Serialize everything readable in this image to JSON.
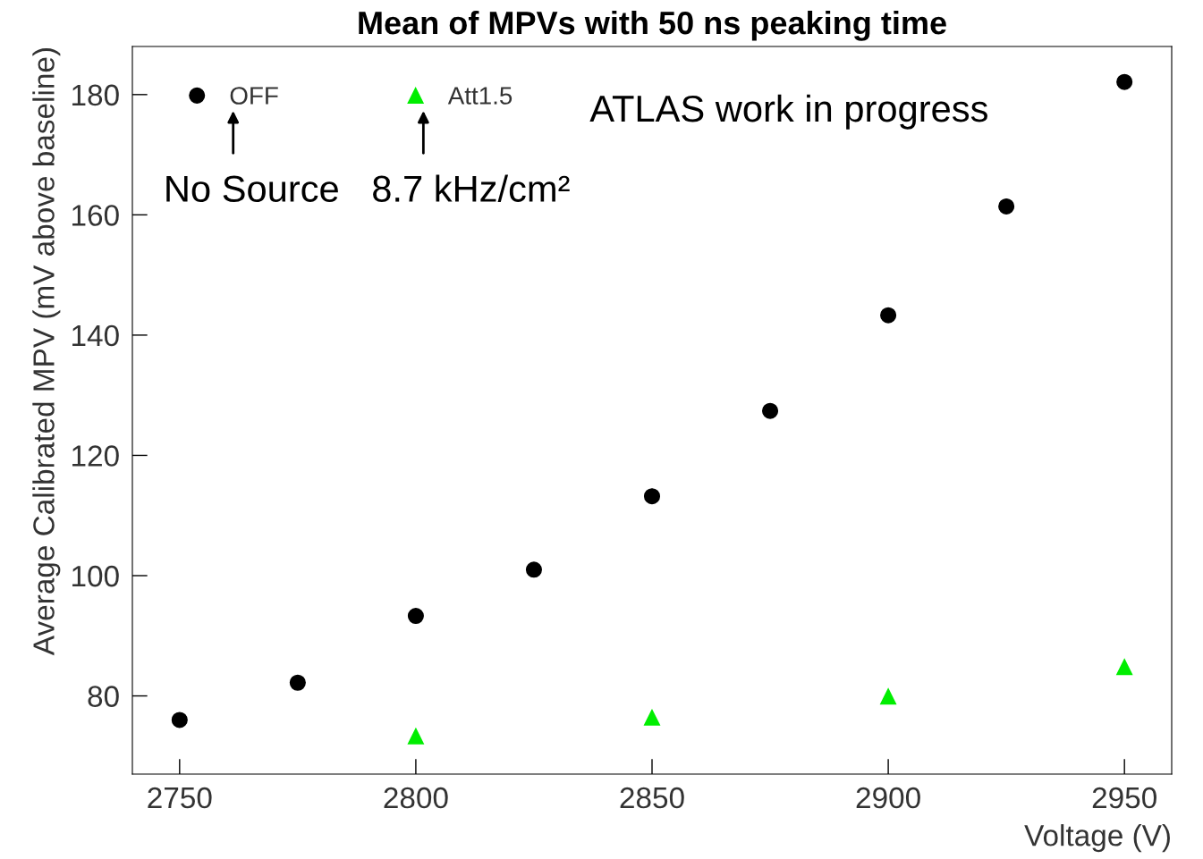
{
  "chart_data": {
    "type": "scatter",
    "title": "Mean of MPVs with 50 ns peaking time",
    "xlabel": "Voltage (V)",
    "ylabel": "Average Calibrated MPV (mV above baseline)",
    "series": [
      {
        "name": "OFF",
        "color": "#000000",
        "marker": "circle",
        "x": [
          2750,
          2775,
          2800,
          2825,
          2850,
          2875,
          2900,
          2925,
          2950
        ],
        "values": [
          76.0,
          82.2,
          93.3,
          101.0,
          113.2,
          127.4,
          143.3,
          161.4,
          182.1
        ]
      },
      {
        "name": "Att1.5",
        "color": "#00ee00",
        "marker": "triangle",
        "x": [
          2800,
          2850,
          2900,
          2950
        ],
        "values": [
          73.3,
          76.4,
          79.9,
          84.8
        ]
      }
    ],
    "xlim": [
      2740,
      2960
    ],
    "ylim": [
      67,
      188
    ],
    "xticks": [
      2750,
      2800,
      2850,
      2900,
      2950
    ],
    "yticks": [
      80,
      100,
      120,
      140,
      160,
      180
    ],
    "annotations": [
      "No Source",
      "8.7 kHz/cm²",
      "ATLAS work in progress"
    ],
    "legend": "top left",
    "grid": false
  }
}
